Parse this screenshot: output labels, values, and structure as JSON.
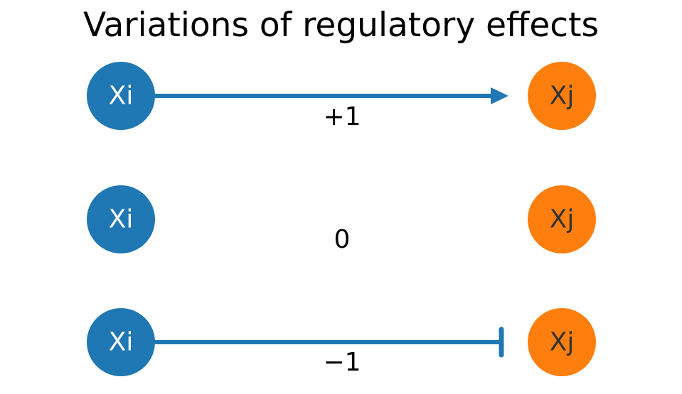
{
  "title": "Variations of regulatory effects",
  "colors": {
    "source_node": "#1f77b4",
    "target_node": "#ff7f0e",
    "edge": "#1f77b4",
    "source_text": "#ffffff",
    "target_text": "#333333"
  },
  "rows": [
    {
      "source": "Xi",
      "target": "Xj",
      "effect": "+1",
      "edge": "arrow"
    },
    {
      "source": "Xi",
      "target": "Xj",
      "effect": "0",
      "edge": "none"
    },
    {
      "source": "Xi",
      "target": "Xj",
      "effect": "−1",
      "edge": "inhibition"
    }
  ]
}
